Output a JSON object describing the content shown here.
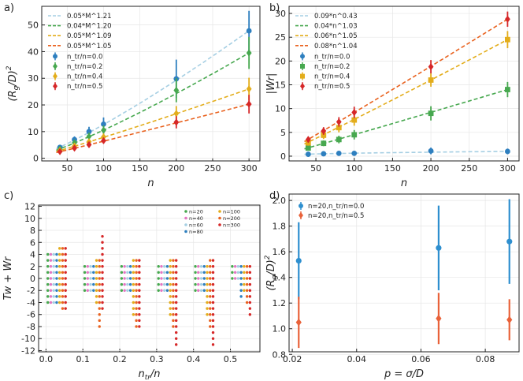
{
  "chart_data": [
    {
      "panel": "a)",
      "type": "scatter",
      "xlabel": "n",
      "ylabel": "(R_g/D)^2",
      "xlim": [
        15,
        315
      ],
      "ylim": [
        -1,
        57
      ],
      "xticks": [
        "50",
        "100",
        "150",
        "200",
        "250",
        "300"
      ],
      "yticks": [
        "0",
        "10",
        "20",
        "30",
        "40",
        "50"
      ],
      "fits": [
        {
          "name": "0.05*M^1.21",
          "color": "#a6cfe3",
          "coef": 0.05,
          "exp": 1.21
        },
        {
          "name": "0.04*M^1.20",
          "color": "#47a84f",
          "coef": 0.04,
          "exp": 1.2
        },
        {
          "name": "0.05*M^1.09",
          "color": "#e3ad1b",
          "coef": 0.05,
          "exp": 1.09
        },
        {
          "name": "0.05*M^1.05",
          "color": "#e9621f",
          "coef": 0.05,
          "exp": 1.05
        }
      ],
      "series": [
        {
          "name": "n_tr/n=0.0",
          "color": "#2e7fbf",
          "marker": "circle",
          "x": [
            40,
            60,
            80,
            100,
            200,
            300
          ],
          "y": [
            4.1,
            7.0,
            10.0,
            12.8,
            29.8,
            47.8
          ],
          "err": [
            0.8,
            1.2,
            1.8,
            2.5,
            7.2,
            7.5
          ]
        },
        {
          "name": "n_tr/n=0.2",
          "color": "#47a84f",
          "marker": "diamond",
          "x": [
            40,
            60,
            80,
            100,
            200,
            300
          ],
          "y": [
            3.4,
            5.8,
            8.2,
            10.5,
            25.5,
            39.5
          ],
          "err": [
            0.6,
            1.0,
            1.4,
            1.8,
            4.5,
            6.0
          ]
        },
        {
          "name": "n_tr/n=0.4",
          "color": "#e3ad1b",
          "marker": "diamond",
          "x": [
            40,
            60,
            80,
            100,
            200,
            300
          ],
          "y": [
            2.9,
            4.6,
            6.2,
            8.0,
            16.8,
            26.0
          ],
          "err": [
            0.5,
            0.8,
            1.0,
            1.3,
            2.8,
            4.2
          ]
        },
        {
          "name": "n_tr/n=0.5",
          "color": "#d62728",
          "marker": "diamond",
          "x": [
            40,
            60,
            80,
            100,
            200,
            300
          ],
          "y": [
            2.5,
            3.8,
            5.1,
            6.6,
            13.5,
            20.3
          ],
          "err": [
            0.4,
            0.7,
            0.9,
            1.1,
            2.3,
            3.5
          ]
        }
      ]
    },
    {
      "panel": "b)",
      "type": "scatter",
      "xlabel": "n",
      "ylabel": "|Wr|",
      "xlim": [
        15,
        315
      ],
      "ylim": [
        -1,
        31.5
      ],
      "xticks": [
        "50",
        "100",
        "150",
        "200",
        "250",
        "300"
      ],
      "yticks": [
        "0",
        "5",
        "10",
        "15",
        "20",
        "25",
        "30"
      ],
      "fits": [
        {
          "name": "0.09*n^0.43",
          "color": "#a6cfe3",
          "coef": 0.09,
          "exp": 0.43
        },
        {
          "name": "0.04*n^1.03",
          "color": "#47a84f",
          "coef": 0.04,
          "exp": 1.03
        },
        {
          "name": "0.06*n^1.05",
          "color": "#e3ad1b",
          "coef": 0.06,
          "exp": 1.05
        },
        {
          "name": "0.08*n^1.04",
          "color": "#e9621f",
          "coef": 0.08,
          "exp": 1.04
        }
      ],
      "series": [
        {
          "name": "n_tr/n=0.0",
          "color": "#2e7fbf",
          "marker": "circle",
          "x": [
            40,
            60,
            80,
            100,
            200,
            300
          ],
          "y": [
            0.4,
            0.5,
            0.6,
            0.6,
            1.1,
            1.0
          ],
          "err": [
            0.2,
            0.2,
            0.3,
            0.3,
            0.7,
            0.6
          ]
        },
        {
          "name": "n_tr/n=0.2",
          "color": "#47a84f",
          "marker": "square",
          "x": [
            40,
            60,
            80,
            100,
            200,
            300
          ],
          "y": [
            1.7,
            2.7,
            3.5,
            4.5,
            9.0,
            14.0
          ],
          "err": [
            0.5,
            0.6,
            0.8,
            1.0,
            1.5,
            1.6
          ]
        },
        {
          "name": "n_tr/n=0.4",
          "color": "#e3ad1b",
          "marker": "square",
          "x": [
            40,
            60,
            80,
            100,
            200,
            300
          ],
          "y": [
            2.8,
            4.4,
            6.0,
            7.6,
            16.0,
            24.5
          ],
          "err": [
            0.6,
            0.8,
            1.0,
            1.2,
            1.4,
            1.8
          ]
        },
        {
          "name": "n_tr/n=0.5",
          "color": "#d62728",
          "marker": "diamond",
          "x": [
            40,
            60,
            80,
            100,
            200,
            300
          ],
          "y": [
            3.5,
            5.3,
            7.2,
            9.2,
            18.8,
            28.8
          ],
          "err": [
            0.6,
            0.8,
            1.0,
            1.2,
            1.4,
            1.6
          ]
        }
      ]
    },
    {
      "panel": "c)",
      "type": "scatter",
      "xlabel": "n_tr/n",
      "ylabel": "Tw + Wr",
      "xlim": [
        -0.02,
        0.58
      ],
      "ylim": [
        -12.2,
        12.2
      ],
      "xticks": [
        "0.0",
        "0.1",
        "0.2",
        "0.3",
        "0.4",
        "0.5"
      ],
      "yticks": [
        "-12",
        "-10",
        "-8",
        "-6",
        "-4",
        "-2",
        "0",
        "2",
        "4",
        "6",
        "8",
        "10",
        "12"
      ],
      "groups": [
        0.0,
        0.1,
        0.2,
        0.3,
        0.4,
        0.5
      ],
      "series": [
        {
          "name": "n=20",
          "color": "#47a84f",
          "ranges": [
            [
              -4,
              4
            ],
            [
              -2,
              2
            ],
            [
              -2,
              2
            ],
            [
              -2,
              2
            ],
            [
              -2,
              2
            ],
            [
              0,
              2
            ]
          ]
        },
        {
          "name": "n=40",
          "color": "#e377c2",
          "ranges": [
            [
              -4,
              4
            ],
            [
              -2,
              2
            ],
            [
              -2,
              2
            ],
            [
              -2,
              2
            ],
            [
              -2,
              2
            ],
            [
              0,
              2
            ]
          ]
        },
        {
          "name": "n=60",
          "color": "#a6cfe3",
          "ranges": [
            [
              -4,
              4
            ],
            [
              -2,
              2
            ],
            [
              -2,
              2
            ],
            [
              -2,
              2
            ],
            [
              -2,
              2
            ],
            [
              0,
              2
            ]
          ]
        },
        {
          "name": "n=80",
          "color": "#2e7fbf",
          "ranges": [
            [
              -4,
              4
            ],
            [
              -2,
              2
            ],
            [
              -2,
              2
            ],
            [
              -2,
              2
            ],
            [
              -2,
              2
            ],
            [
              -3,
              2
            ]
          ]
        },
        {
          "name": "n=100",
          "color": "#e3ad1b",
          "ranges": [
            [
              -4,
              5
            ],
            [
              -4,
              3
            ],
            [
              -6,
              3
            ],
            [
              -6,
              3
            ],
            [
              -6,
              2
            ],
            [
              -2,
              2
            ]
          ]
        },
        {
          "name": "n=200",
          "color": "#e9621f",
          "ranges": [
            [
              -5,
              5
            ],
            [
              -8,
              3
            ],
            [
              -8,
              3
            ],
            [
              -8,
              3
            ],
            [
              -8,
              3
            ],
            [
              -4,
              2
            ]
          ]
        },
        {
          "name": "n=300",
          "color": "#d62728",
          "ranges": [
            [
              -5,
              5
            ],
            [
              -5,
              7
            ],
            [
              -8,
              3
            ],
            [
              -11,
              3
            ],
            [
              -11,
              3
            ],
            [
              -6,
              2
            ]
          ]
        }
      ]
    },
    {
      "panel": "d)",
      "type": "scatter",
      "xlabel": "p = σ/D",
      "ylabel": "(R_g/D)^2",
      "xlim": [
        0.019,
        0.0905
      ],
      "ylim": [
        0.82,
        2.05
      ],
      "xticks": [
        "0.02",
        "0.04",
        "0.06",
        "0.08"
      ],
      "yticks": [
        "0.8",
        "1.0",
        "1.2",
        "1.4",
        "1.6",
        "1.8",
        "2.0"
      ],
      "series": [
        {
          "name": "n=20,n_tr/n=0.0",
          "color": "#2e8fcf",
          "marker": "circle",
          "x": [
            0.022,
            0.0655,
            0.0875
          ],
          "y": [
            1.53,
            1.63,
            1.68
          ],
          "err": [
            0.3,
            0.33,
            0.33
          ]
        },
        {
          "name": "n=20,n_tr/n=0.5",
          "color": "#e9623a",
          "marker": "diamond",
          "x": [
            0.022,
            0.0655,
            0.0875
          ],
          "y": [
            1.05,
            1.08,
            1.07
          ],
          "err": [
            0.2,
            0.2,
            0.16
          ]
        }
      ]
    }
  ]
}
